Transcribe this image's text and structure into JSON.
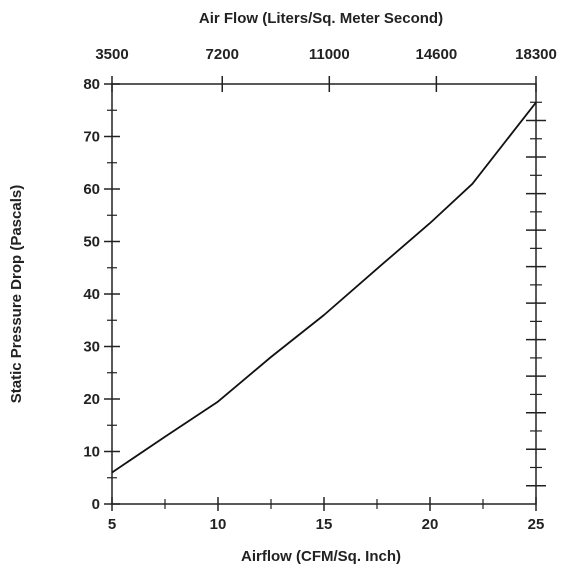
{
  "chart_data": {
    "type": "line",
    "title": "",
    "xlabel": "Airflow (CFM/Sq. Inch)",
    "ylabel": "Static Pressure Drop (Pascals)",
    "x2label": "Air Flow (Liters/Sq. Meter Second)",
    "xlim": [
      5,
      25
    ],
    "ylim": [
      0,
      80
    ],
    "x_ticks": [
      "5",
      "10",
      "15",
      "20",
      "25"
    ],
    "y_ticks": [
      "0",
      "10",
      "20",
      "30",
      "40",
      "50",
      "60",
      "70",
      "80"
    ],
    "x2_ticks": [
      {
        "label": "3500",
        "x": 5
      },
      {
        "label": "7200",
        "x": 10.2
      },
      {
        "label": "11000",
        "x": 15.25
      },
      {
        "label": "14600",
        "x": 20.3
      },
      {
        "label": "18300",
        "x": 25
      }
    ],
    "grid": false,
    "series": [
      {
        "color": "#111111",
        "x": [
          5,
          7.5,
          10,
          12.5,
          15,
          17.5,
          20,
          22,
          25
        ],
        "y": [
          6,
          12.8,
          19.5,
          28,
          36,
          44.8,
          53.5,
          61,
          76.5
        ]
      }
    ]
  }
}
